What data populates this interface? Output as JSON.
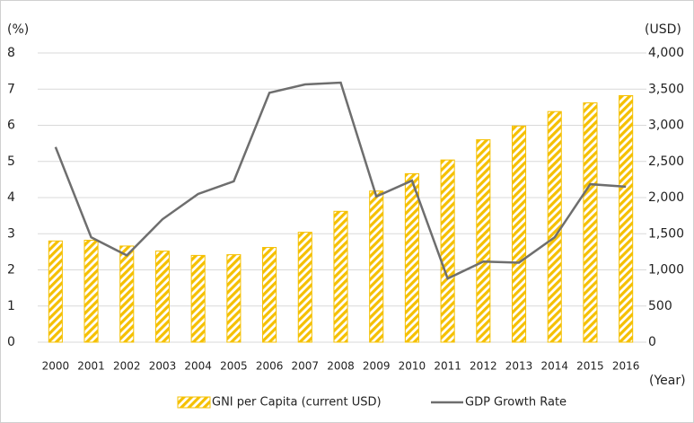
{
  "chart_data": {
    "type": "bar",
    "y_label": "(%)",
    "y2_label": "(USD)",
    "x_label": "(Year)",
    "categories": [
      "2000",
      "2001",
      "2002",
      "2003",
      "2004",
      "2005",
      "2006",
      "2007",
      "2008",
      "2009",
      "2010",
      "2011",
      "2012",
      "2013",
      "2014",
      "2015",
      "2016"
    ],
    "series": [
      {
        "name": "GNI per Capita (current USD)",
        "type": "bar",
        "axis": "y2",
        "color": "#f5c000",
        "values": [
          1400,
          1410,
          1330,
          1260,
          1200,
          1210,
          1310,
          1520,
          1810,
          2090,
          2330,
          2520,
          2800,
          2990,
          3190,
          3310,
          3410
        ]
      },
      {
        "name": "GDP Growth Rate",
        "type": "line",
        "axis": "y",
        "color": "#6e6e6e",
        "values": [
          5.4,
          2.9,
          2.4,
          3.4,
          4.1,
          4.45,
          6.9,
          7.13,
          7.18,
          4.03,
          4.47,
          1.76,
          2.23,
          2.2,
          2.9,
          4.37,
          4.3
        ]
      }
    ],
    "ylim": [
      0,
      8
    ],
    "yticks": [
      0,
      1,
      2,
      3,
      4,
      5,
      6,
      7,
      8
    ],
    "y2lim": [
      0,
      4000
    ],
    "y2ticks": [
      0,
      500,
      {
        "value": 1000,
        "label": "1,000"
      },
      {
        "value": 1500,
        "label": "1,500"
      },
      {
        "value": 2000,
        "label": "2,000"
      },
      {
        "value": 2500,
        "label": "2,500"
      },
      {
        "value": 3000,
        "label": "3,000"
      },
      {
        "value": 3500,
        "label": "3,500"
      },
      {
        "value": 4000,
        "label": "4,000"
      }
    ],
    "grid": true
  }
}
